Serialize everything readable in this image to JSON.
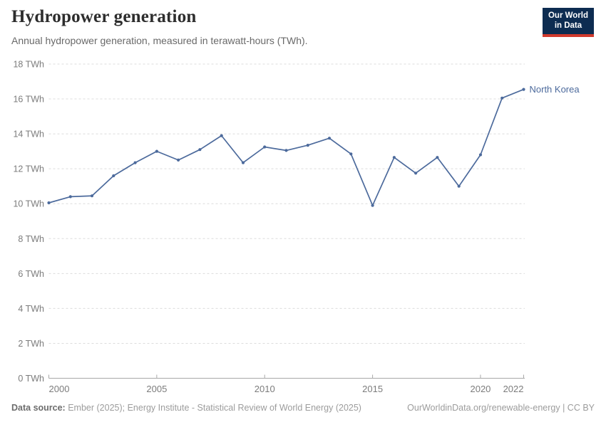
{
  "header": {
    "title": "Hydropower generation",
    "subtitle": "Annual hydropower generation, measured in terawatt-hours (TWh)."
  },
  "logo": {
    "line1": "Our World",
    "line2": "in Data",
    "bg_color": "#0d2c51",
    "accent_color": "#d13a2d"
  },
  "chart_data": {
    "type": "line",
    "title": "Hydropower generation",
    "unit": "TWh",
    "x": [
      2000,
      2001,
      2002,
      2003,
      2004,
      2005,
      2006,
      2007,
      2008,
      2009,
      2010,
      2011,
      2012,
      2013,
      2014,
      2015,
      2016,
      2017,
      2018,
      2019,
      2020,
      2021,
      2022
    ],
    "series": [
      {
        "name": "North Korea",
        "color": "#4C6A9C",
        "values": [
          10.05,
          10.4,
          10.45,
          11.6,
          12.35,
          13.0,
          12.5,
          13.1,
          13.9,
          12.35,
          13.25,
          13.05,
          13.35,
          13.75,
          12.85,
          9.9,
          12.65,
          11.75,
          12.65,
          11.0,
          12.8,
          16.05,
          16.55
        ]
      }
    ],
    "xlim": [
      2000,
      2022
    ],
    "ylim": [
      0,
      18
    ],
    "yticks": [
      {
        "value": 0,
        "label": "0 TWh"
      },
      {
        "value": 2,
        "label": "2 TWh"
      },
      {
        "value": 4,
        "label": "4 TWh"
      },
      {
        "value": 6,
        "label": "6 TWh"
      },
      {
        "value": 8,
        "label": "8 TWh"
      },
      {
        "value": 10,
        "label": "10 TWh"
      },
      {
        "value": 12,
        "label": "12 TWh"
      },
      {
        "value": 14,
        "label": "14 TWh"
      },
      {
        "value": 16,
        "label": "16 TWh"
      },
      {
        "value": 18,
        "label": "18 TWh"
      }
    ],
    "xticks": [
      {
        "value": 2000,
        "label": "2000",
        "align": "start"
      },
      {
        "value": 2005,
        "label": "2005",
        "align": "middle"
      },
      {
        "value": 2010,
        "label": "2010",
        "align": "middle"
      },
      {
        "value": 2015,
        "label": "2015",
        "align": "middle"
      },
      {
        "value": 2020,
        "label": "2020",
        "align": "middle"
      },
      {
        "value": 2022,
        "label": "2022",
        "align": "end"
      }
    ],
    "grid": "horizontal-dashed",
    "legend_position": "line-end-label"
  },
  "footer": {
    "datasource_label": "Data source:",
    "datasource_text": " Ember (2025); Energy Institute - Statistical Review of World Energy (2025)",
    "link_text": "OurWorldinData.org/renewable-energy | CC BY"
  },
  "colors": {
    "line": "#4C6A9C",
    "grid": "#dcdcdc",
    "axis": "#a8a8a8",
    "axis_text": "#7c7c7c",
    "title_text": "#2d2d2d",
    "subtitle_text": "#696969"
  }
}
